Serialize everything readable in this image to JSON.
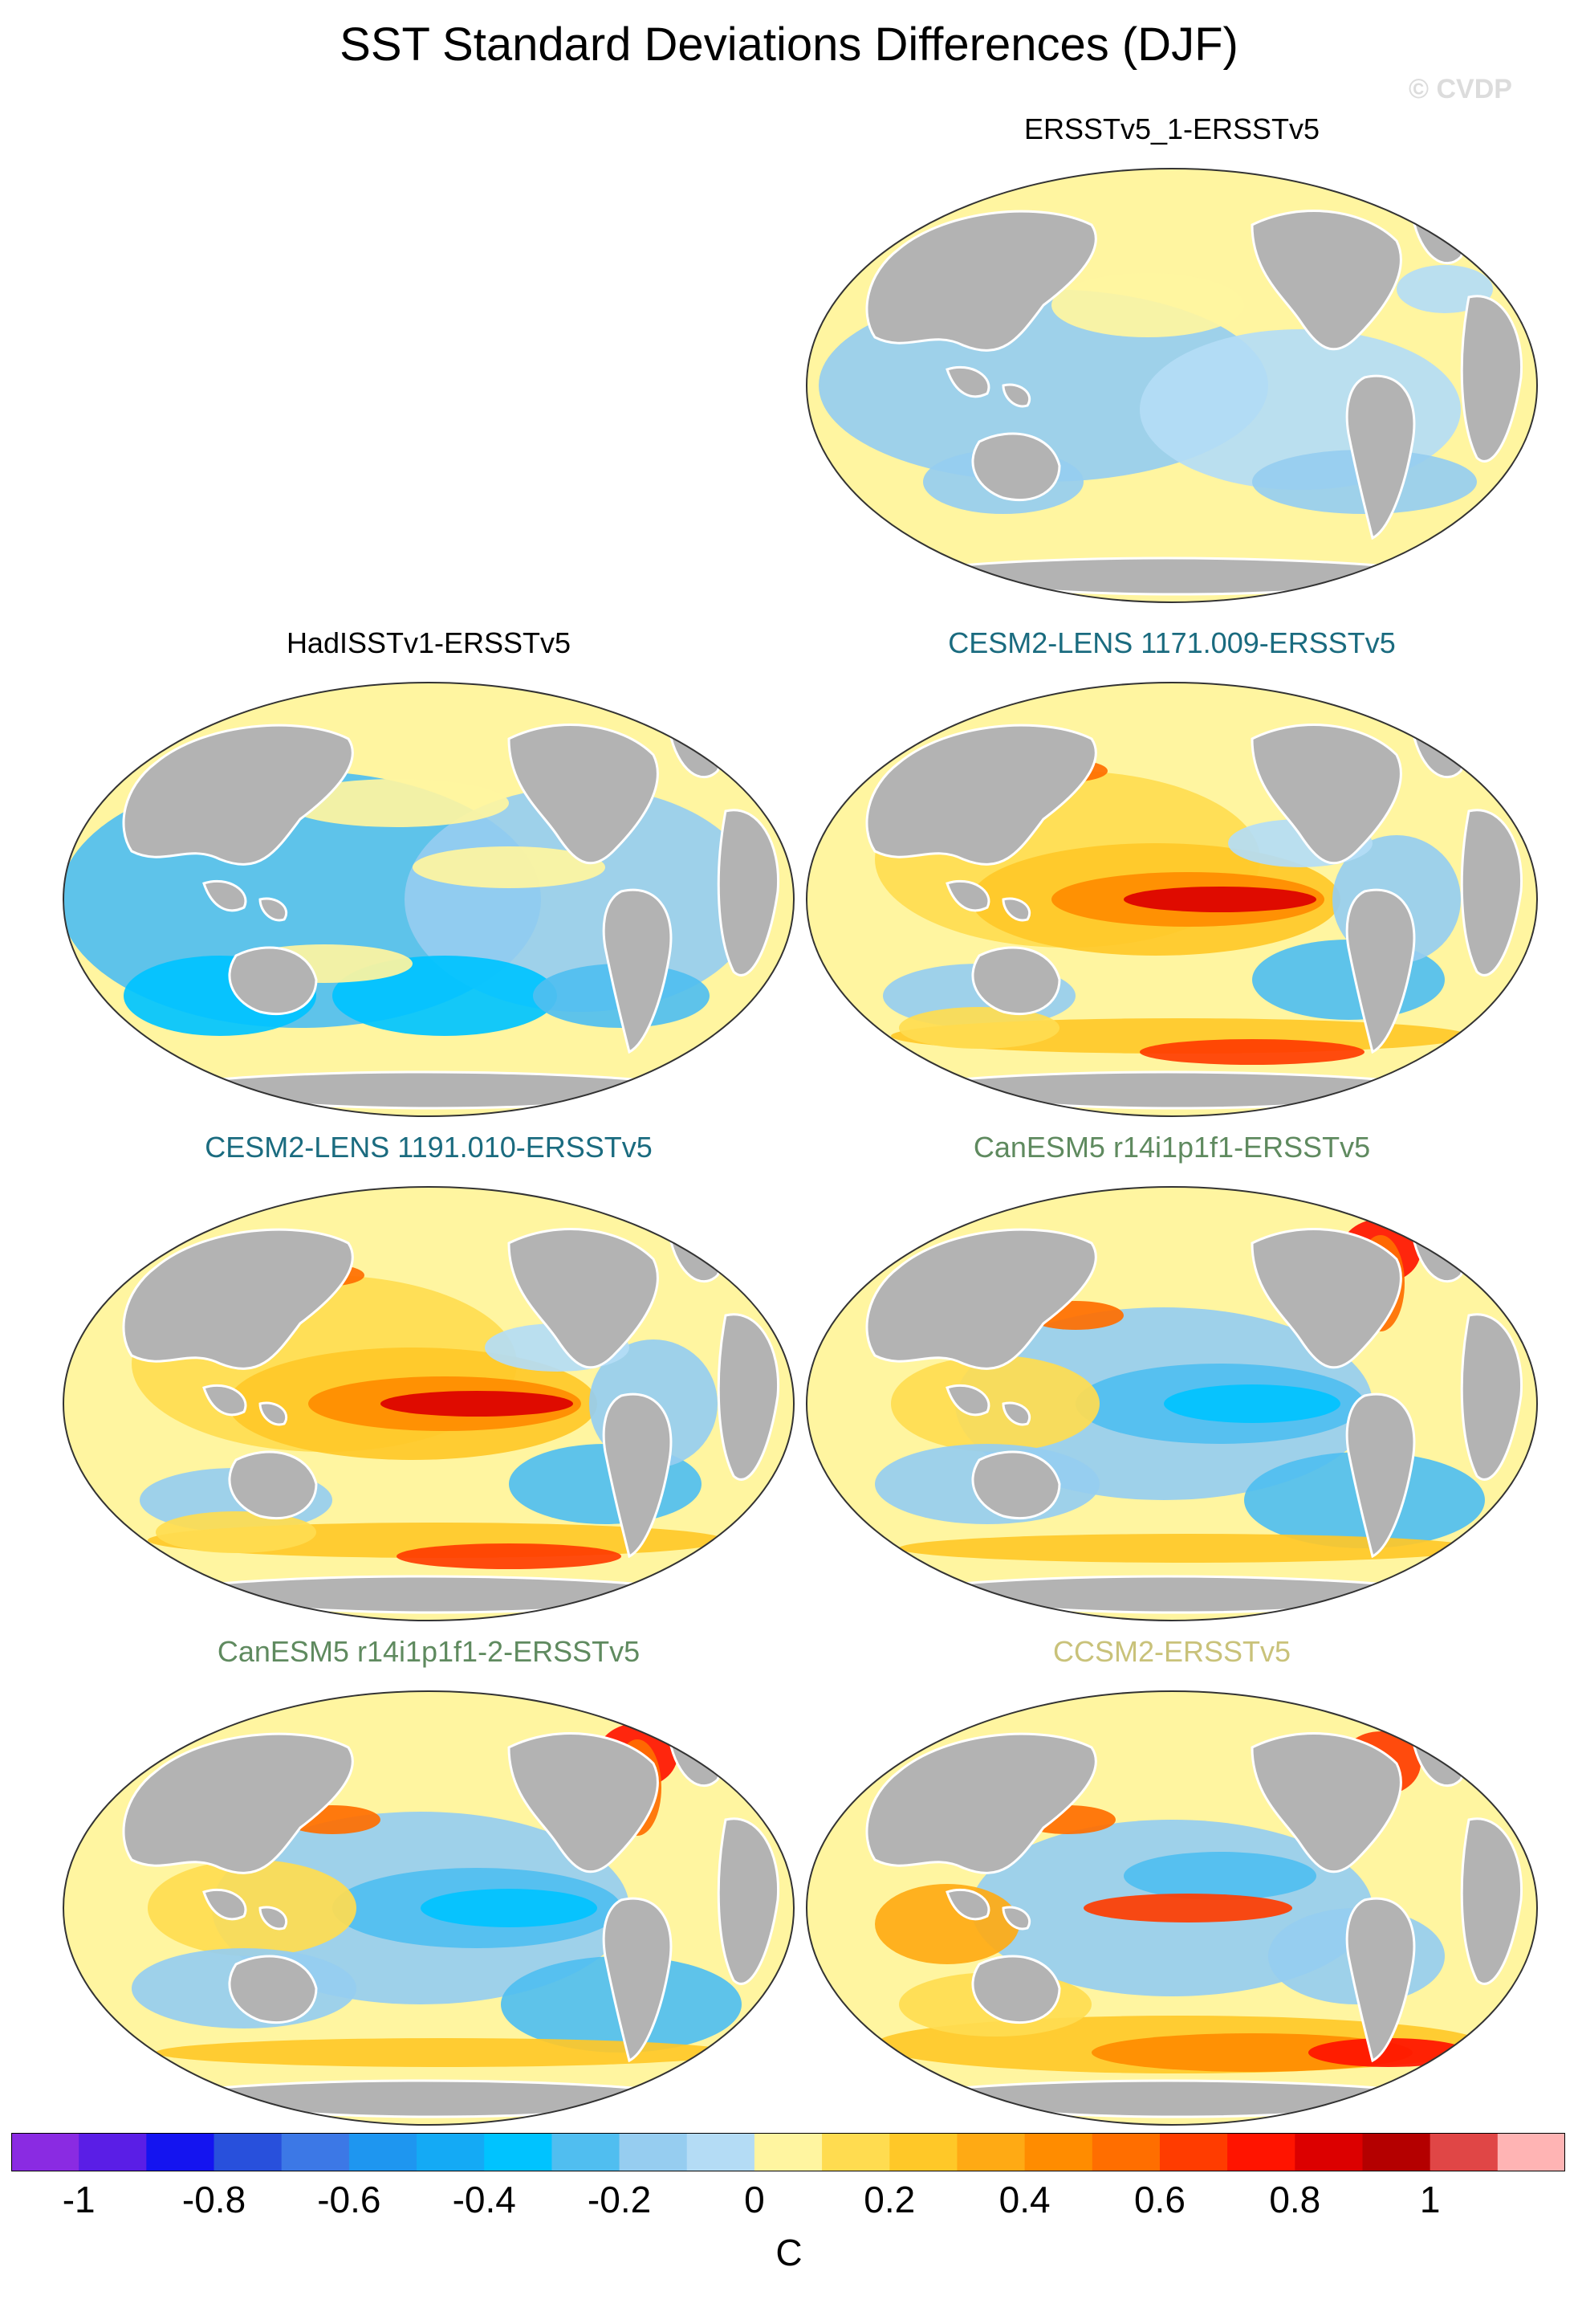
{
  "title": "SST Standard Deviations Differences (DJF)",
  "watermark": "© CVDP",
  "panels": [
    {
      "id": "p1",
      "title": "ERSSTv5_1-ERSSTv5",
      "title_color": "#000000",
      "pattern": "neutral"
    },
    {
      "id": "p2",
      "title": "HadISSTv1-ERSSTv5",
      "title_color": "#000000",
      "pattern": "cool"
    },
    {
      "id": "p3",
      "title": "CESM2-LENS 1171.009-ERSSTv5",
      "title_color": "#1a6b7f",
      "pattern": "warm-enso"
    },
    {
      "id": "p4",
      "title": "CESM2-LENS 1191.010-ERSSTv5",
      "title_color": "#1a6b7f",
      "pattern": "warm-enso"
    },
    {
      "id": "p5",
      "title": "CanESM5 r14i1p1f1-ERSSTv5",
      "title_color": "#5f8a5f",
      "pattern": "cool-enso"
    },
    {
      "id": "p6",
      "title": "CanESM5 r14i1p1f1-2-ERSSTv5",
      "title_color": "#5f8a5f",
      "pattern": "cool-enso"
    },
    {
      "id": "p7",
      "title": "CCSM2-ERSSTv5",
      "title_color": "#c9c27a",
      "pattern": "mixed"
    }
  ],
  "colorbar": {
    "colors": [
      "#8a2be2",
      "#5a1ee6",
      "#1414f0",
      "#2850dc",
      "#3c78e6",
      "#1e96f0",
      "#14aaf5",
      "#00c3ff",
      "#50bef0",
      "#96cdf0",
      "#b4dcf5",
      "#fff5a0",
      "#ffdc50",
      "#ffc828",
      "#ffaa14",
      "#ff8c00",
      "#ff6e00",
      "#ff3c00",
      "#ff1400",
      "#dc0000",
      "#b40000",
      "#e04646",
      "#ffb4b4"
    ],
    "ticks": [
      "-1",
      "-0.8",
      "-0.6",
      "-0.4",
      "-0.2",
      "0",
      "0.2",
      "0.4",
      "0.6",
      "0.8",
      "1"
    ],
    "units": "C"
  }
}
